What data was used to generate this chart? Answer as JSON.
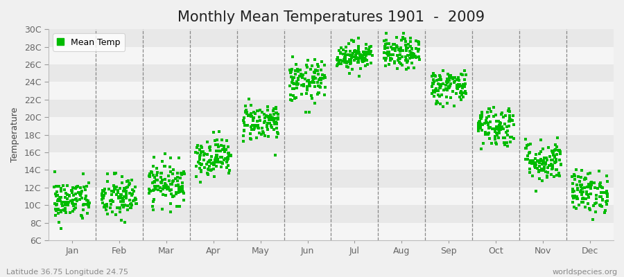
{
  "title": "Monthly Mean Temperatures 1901  -  2009",
  "ylabel": "Temperature",
  "footer_left": "Latitude 36.75 Longitude 24.75",
  "footer_right": "worldspecies.org",
  "legend_label": "Mean Temp",
  "dot_color": "#00BB00",
  "background_color": "#F0F0F0",
  "band_color_dark": "#E8E8E8",
  "band_color_light": "#F5F5F5",
  "ylim": [
    6,
    30
  ],
  "ytick_labels": [
    "6C",
    "8C",
    "10C",
    "12C",
    "14C",
    "16C",
    "18C",
    "20C",
    "22C",
    "24C",
    "26C",
    "28C",
    "30C"
  ],
  "ytick_values": [
    6,
    8,
    10,
    12,
    14,
    16,
    18,
    20,
    22,
    24,
    26,
    28,
    30
  ],
  "months": [
    "Jan",
    "Feb",
    "Mar",
    "Apr",
    "May",
    "Jun",
    "Jul",
    "Aug",
    "Sep",
    "Oct",
    "Nov",
    "Dec"
  ],
  "monthly_means": [
    10.5,
    10.8,
    12.5,
    15.5,
    19.5,
    24.0,
    27.0,
    27.2,
    23.5,
    19.0,
    15.0,
    11.5
  ],
  "monthly_stds": [
    1.2,
    1.3,
    1.2,
    1.1,
    1.1,
    1.2,
    0.8,
    0.9,
    1.0,
    1.2,
    1.2,
    1.2
  ],
  "n_years": 109,
  "seed": 42,
  "title_fontsize": 15,
  "axis_fontsize": 9,
  "tick_fontsize": 9,
  "footer_fontsize": 8,
  "dot_size": 7
}
